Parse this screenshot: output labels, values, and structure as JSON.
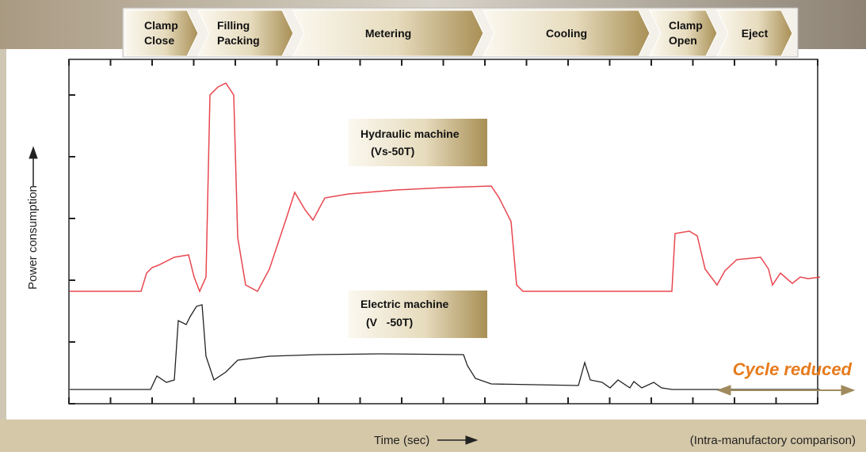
{
  "phases": [
    {
      "lines": [
        "Clamp",
        "Close"
      ]
    },
    {
      "lines": [
        "Filling",
        "Packing"
      ]
    },
    {
      "lines": [
        "Metering"
      ]
    },
    {
      "lines": [
        "Cooling"
      ]
    },
    {
      "lines": [
        "Clamp",
        "Open"
      ]
    },
    {
      "lines": [
        "Eject"
      ]
    }
  ],
  "hydraulic": {
    "name": "Hydraulic machine",
    "model": "(Vs-50T)"
  },
  "electric": {
    "name": "Electric machine",
    "model": "(V   -50T)"
  },
  "cycle_note": "Cycle reduced",
  "y_axis_label": "Power consumption",
  "x_axis_label": "Time (sec)",
  "comparison_note": "(Intra-manufactory comparison)"
}
